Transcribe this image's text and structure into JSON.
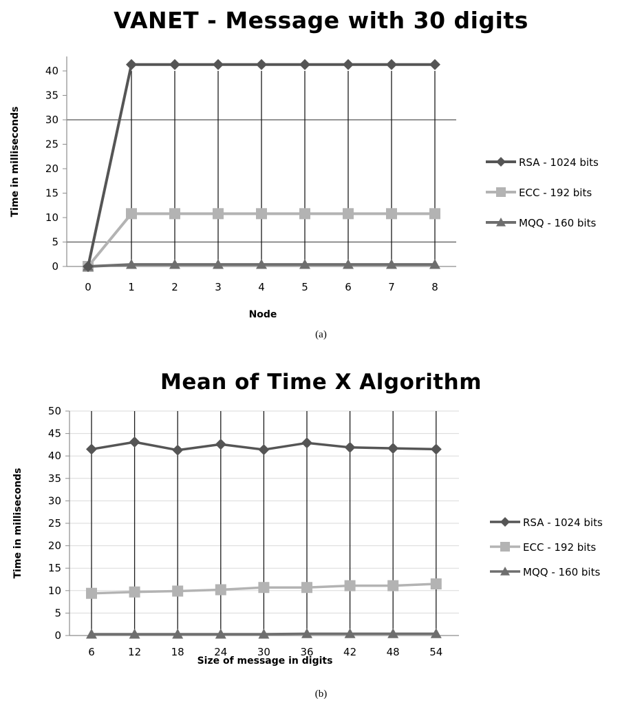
{
  "chart_data": [
    {
      "type": "line",
      "title": "VANET - Message with 30 digits",
      "caption": "(a)",
      "xlabel": "Node",
      "ylabel": "Time in milliseconds",
      "x": [
        0,
        1,
        2,
        3,
        4,
        5,
        6,
        7,
        8
      ],
      "ylim": [
        0,
        40
      ],
      "yticks": [
        0,
        5,
        10,
        15,
        20,
        25,
        30,
        35,
        40
      ],
      "grid": "vertical lines at each x; horizontal lines at 5 and 30",
      "legend_position": "right",
      "series": [
        {
          "name": "RSA - 1024 bits",
          "marker": "diamond",
          "color": "#555555",
          "values": [
            0,
            41.3,
            41.3,
            41.3,
            41.3,
            41.3,
            41.3,
            41.3,
            41.3
          ]
        },
        {
          "name": "ECC  - 192 bits",
          "marker": "square",
          "color": "#b3b3b3",
          "values": [
            0,
            10.8,
            10.8,
            10.8,
            10.8,
            10.8,
            10.8,
            10.8,
            10.8
          ]
        },
        {
          "name": "MQQ - 160 bits",
          "marker": "triangle",
          "color": "#6e6e6e",
          "values": [
            0,
            0.4,
            0.4,
            0.4,
            0.4,
            0.4,
            0.4,
            0.4,
            0.4
          ]
        }
      ]
    },
    {
      "type": "line",
      "title": "Mean of Time X Algorithm",
      "caption": "(b)",
      "xlabel": "Size of message in digits",
      "ylabel": "Time in milliseconds",
      "x": [
        6,
        12,
        18,
        24,
        30,
        36,
        42,
        48,
        54
      ],
      "ylim": [
        0,
        50
      ],
      "yticks": [
        0,
        5,
        10,
        15,
        20,
        25,
        30,
        35,
        40,
        45,
        50
      ],
      "grid": "vertical lines at each x; light horizontal lines every 5",
      "legend_position": "right",
      "series": [
        {
          "name": "RSA - 1024 bits",
          "marker": "diamond",
          "color": "#555555",
          "values": [
            41.5,
            43.1,
            41.3,
            42.6,
            41.4,
            42.9,
            41.9,
            41.7,
            41.5
          ]
        },
        {
          "name": "ECC - 192 bits",
          "marker": "square",
          "color": "#b3b3b3",
          "values": [
            9.4,
            9.7,
            9.9,
            10.2,
            10.7,
            10.7,
            11.1,
            11.1,
            11.5
          ]
        },
        {
          "name": "MQQ - 160 bits",
          "marker": "triangle",
          "color": "#6e6e6e",
          "values": [
            0.3,
            0.3,
            0.3,
            0.3,
            0.3,
            0.4,
            0.4,
            0.4,
            0.4
          ]
        }
      ]
    }
  ]
}
